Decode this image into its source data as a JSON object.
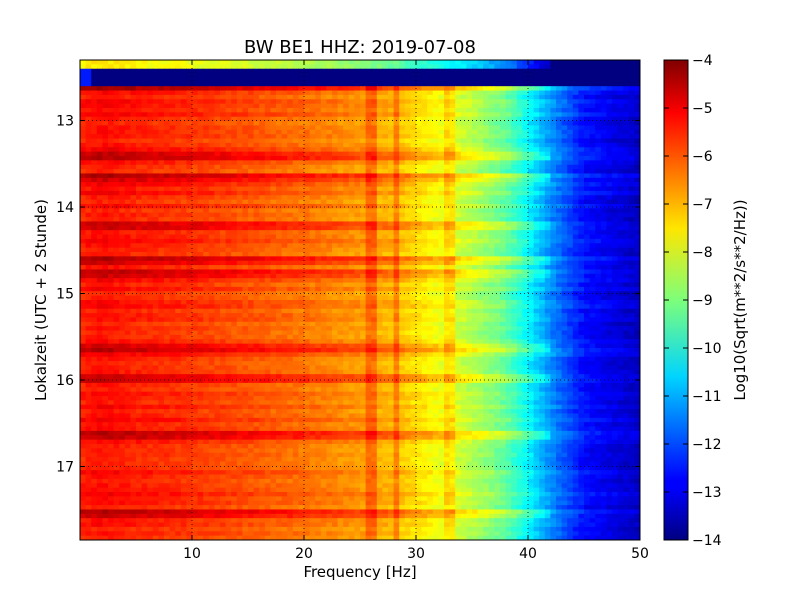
{
  "chart_data": {
    "type": "heatmap",
    "title": "BW BE1 HHZ: 2019-07-08",
    "xlabel": "Frequency [Hz]",
    "ylabel": "Lokalzeit (UTC + 2 Stunde)",
    "xlim": [
      0,
      50
    ],
    "ylim": [
      12.3,
      17.85
    ],
    "y_inverted": true,
    "x_ticks": [
      "10",
      "20",
      "30",
      "40",
      "50"
    ],
    "x_tick_values": [
      10,
      20,
      30,
      40,
      50
    ],
    "y_ticks": [
      "13",
      "14",
      "15",
      "16",
      "17"
    ],
    "y_tick_values": [
      13,
      14,
      15,
      16,
      17
    ],
    "grid": true,
    "colormap": "jet",
    "colorbar": {
      "label": "Log10(Sqrt(m**2/s**2/Hz))",
      "range": [
        -14,
        -4
      ],
      "ticks": [
        "−4",
        "−5",
        "−6",
        "−7",
        "−8",
        "−9",
        "−10",
        "−11",
        "−12",
        "−13",
        "−14"
      ],
      "tick_values": [
        -4,
        -5,
        -6,
        -7,
        -8,
        -9,
        -10,
        -11,
        -12,
        -13,
        -14
      ]
    },
    "spectral_profile": {
      "frequency_hz": [
        0,
        2,
        5,
        10,
        15,
        20,
        25,
        28,
        30,
        32,
        35,
        38,
        40,
        42,
        45,
        50
      ],
      "log10_amplitude": [
        -5.5,
        -5.3,
        -5.5,
        -5.7,
        -6.0,
        -6.3,
        -6.7,
        -7.0,
        -7.4,
        -7.8,
        -8.4,
        -9.2,
        -10.2,
        -11.3,
        -12.6,
        -13.3
      ]
    },
    "gap_band": {
      "time_start": 12.39,
      "time_end": 12.58,
      "value": -14
    },
    "spectral_lines_hz": [
      26.0,
      28.4,
      33.0
    ],
    "energetic_rows_time": [
      12.6,
      13.4,
      13.65,
      14.2,
      14.6,
      14.75,
      15.65,
      16.0,
      16.62,
      17.55
    ],
    "note_rows_value_offset": 0.8
  },
  "colors": {
    "axes_frame": "#000000",
    "grid": "#000000",
    "background": "#ffffff"
  }
}
